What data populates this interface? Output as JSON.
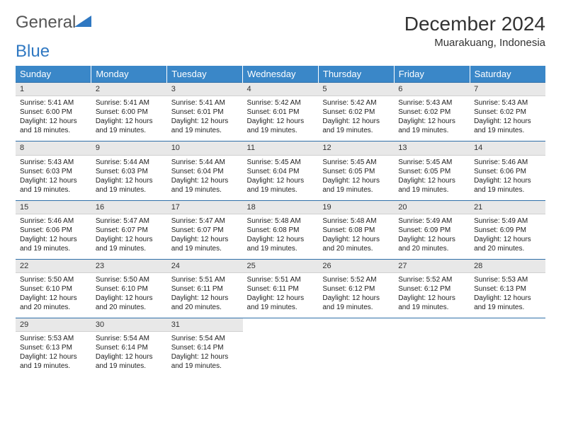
{
  "logo": {
    "text1": "General",
    "text2": "Blue"
  },
  "title": "December 2024",
  "location": "Muarakuang, Indonesia",
  "colors": {
    "header_bg": "#3a87c8",
    "header_text": "#ffffff",
    "daynum_bg": "#e8e8e8",
    "row_border": "#2f6fa8",
    "logo_gray": "#555555",
    "logo_blue": "#2f78c2",
    "text": "#222222"
  },
  "fonts": {
    "title_size": 28,
    "location_size": 15,
    "header_size": 13,
    "daynum_size": 11,
    "body_size": 10
  },
  "day_headers": [
    "Sunday",
    "Monday",
    "Tuesday",
    "Wednesday",
    "Thursday",
    "Friday",
    "Saturday"
  ],
  "weeks": [
    [
      {
        "n": "1",
        "sunrise": "5:41 AM",
        "sunset": "6:00 PM",
        "daylight": "12 hours and 18 minutes."
      },
      {
        "n": "2",
        "sunrise": "5:41 AM",
        "sunset": "6:00 PM",
        "daylight": "12 hours and 19 minutes."
      },
      {
        "n": "3",
        "sunrise": "5:41 AM",
        "sunset": "6:01 PM",
        "daylight": "12 hours and 19 minutes."
      },
      {
        "n": "4",
        "sunrise": "5:42 AM",
        "sunset": "6:01 PM",
        "daylight": "12 hours and 19 minutes."
      },
      {
        "n": "5",
        "sunrise": "5:42 AM",
        "sunset": "6:02 PM",
        "daylight": "12 hours and 19 minutes."
      },
      {
        "n": "6",
        "sunrise": "5:43 AM",
        "sunset": "6:02 PM",
        "daylight": "12 hours and 19 minutes."
      },
      {
        "n": "7",
        "sunrise": "5:43 AM",
        "sunset": "6:02 PM",
        "daylight": "12 hours and 19 minutes."
      }
    ],
    [
      {
        "n": "8",
        "sunrise": "5:43 AM",
        "sunset": "6:03 PM",
        "daylight": "12 hours and 19 minutes."
      },
      {
        "n": "9",
        "sunrise": "5:44 AM",
        "sunset": "6:03 PM",
        "daylight": "12 hours and 19 minutes."
      },
      {
        "n": "10",
        "sunrise": "5:44 AM",
        "sunset": "6:04 PM",
        "daylight": "12 hours and 19 minutes."
      },
      {
        "n": "11",
        "sunrise": "5:45 AM",
        "sunset": "6:04 PM",
        "daylight": "12 hours and 19 minutes."
      },
      {
        "n": "12",
        "sunrise": "5:45 AM",
        "sunset": "6:05 PM",
        "daylight": "12 hours and 19 minutes."
      },
      {
        "n": "13",
        "sunrise": "5:45 AM",
        "sunset": "6:05 PM",
        "daylight": "12 hours and 19 minutes."
      },
      {
        "n": "14",
        "sunrise": "5:46 AM",
        "sunset": "6:06 PM",
        "daylight": "12 hours and 19 minutes."
      }
    ],
    [
      {
        "n": "15",
        "sunrise": "5:46 AM",
        "sunset": "6:06 PM",
        "daylight": "12 hours and 19 minutes."
      },
      {
        "n": "16",
        "sunrise": "5:47 AM",
        "sunset": "6:07 PM",
        "daylight": "12 hours and 19 minutes."
      },
      {
        "n": "17",
        "sunrise": "5:47 AM",
        "sunset": "6:07 PM",
        "daylight": "12 hours and 19 minutes."
      },
      {
        "n": "18",
        "sunrise": "5:48 AM",
        "sunset": "6:08 PM",
        "daylight": "12 hours and 19 minutes."
      },
      {
        "n": "19",
        "sunrise": "5:48 AM",
        "sunset": "6:08 PM",
        "daylight": "12 hours and 20 minutes."
      },
      {
        "n": "20",
        "sunrise": "5:49 AM",
        "sunset": "6:09 PM",
        "daylight": "12 hours and 20 minutes."
      },
      {
        "n": "21",
        "sunrise": "5:49 AM",
        "sunset": "6:09 PM",
        "daylight": "12 hours and 20 minutes."
      }
    ],
    [
      {
        "n": "22",
        "sunrise": "5:50 AM",
        "sunset": "6:10 PM",
        "daylight": "12 hours and 20 minutes."
      },
      {
        "n": "23",
        "sunrise": "5:50 AM",
        "sunset": "6:10 PM",
        "daylight": "12 hours and 20 minutes."
      },
      {
        "n": "24",
        "sunrise": "5:51 AM",
        "sunset": "6:11 PM",
        "daylight": "12 hours and 20 minutes."
      },
      {
        "n": "25",
        "sunrise": "5:51 AM",
        "sunset": "6:11 PM",
        "daylight": "12 hours and 19 minutes."
      },
      {
        "n": "26",
        "sunrise": "5:52 AM",
        "sunset": "6:12 PM",
        "daylight": "12 hours and 19 minutes."
      },
      {
        "n": "27",
        "sunrise": "5:52 AM",
        "sunset": "6:12 PM",
        "daylight": "12 hours and 19 minutes."
      },
      {
        "n": "28",
        "sunrise": "5:53 AM",
        "sunset": "6:13 PM",
        "daylight": "12 hours and 19 minutes."
      }
    ],
    [
      {
        "n": "29",
        "sunrise": "5:53 AM",
        "sunset": "6:13 PM",
        "daylight": "12 hours and 19 minutes."
      },
      {
        "n": "30",
        "sunrise": "5:54 AM",
        "sunset": "6:14 PM",
        "daylight": "12 hours and 19 minutes."
      },
      {
        "n": "31",
        "sunrise": "5:54 AM",
        "sunset": "6:14 PM",
        "daylight": "12 hours and 19 minutes."
      },
      null,
      null,
      null,
      null
    ]
  ],
  "labels": {
    "sunrise": "Sunrise:",
    "sunset": "Sunset:",
    "daylight": "Daylight:"
  }
}
